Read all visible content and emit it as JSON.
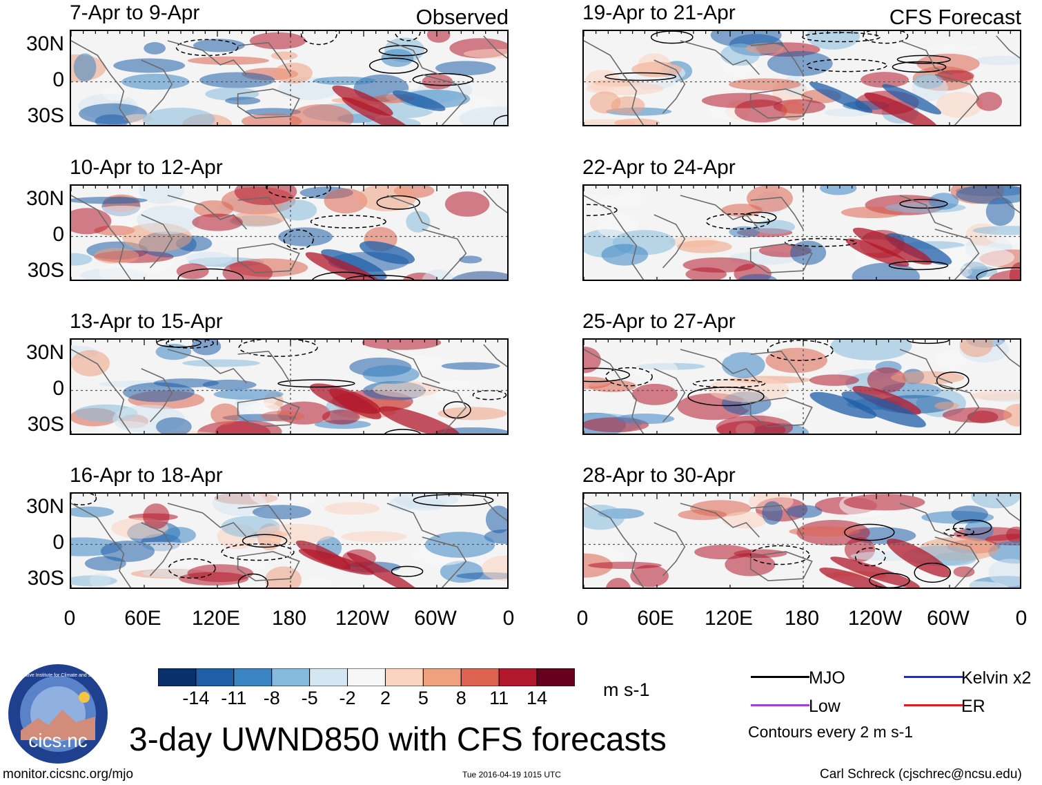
{
  "chart_data": {
    "type": "heatmap",
    "title": "3-day UWND850 with CFS forecasts",
    "variable": "UWND850",
    "units": "m s-1",
    "colorbar": {
      "levels": [
        -14,
        -11,
        -8,
        -5,
        -2,
        2,
        5,
        8,
        11,
        14
      ],
      "tick_labels": [
        "-14",
        "-11",
        "-8",
        "-5",
        "-2",
        "2",
        "5",
        "8",
        "11",
        "14"
      ],
      "colors": [
        "#08306b",
        "#1f5fa8",
        "#3a85c3",
        "#87bbdd",
        "#d4e6f1",
        "#f7f7f7",
        "#fbd4c0",
        "#f0a07f",
        "#dc6450",
        "#b2182b",
        "#67001f"
      ]
    },
    "x_tick_labels": [
      "0",
      "60E",
      "120E",
      "180",
      "120W",
      "60W",
      "0"
    ],
    "y_tick_labels": [
      "30N",
      "0",
      "30S"
    ],
    "contour_note": "Contours every 2 m s-1",
    "legend": [
      {
        "label": "MJO",
        "color": "#000000"
      },
      {
        "label": "Kelvin x2",
        "color": "#1a2fc9"
      },
      {
        "label": "Low",
        "color": "#a03ce0"
      },
      {
        "label": "ER",
        "color": "#e41a1c"
      }
    ],
    "columns": [
      {
        "header": "Observed",
        "panels": [
          {
            "period": "7-Apr to 9-Apr"
          },
          {
            "period": "10-Apr to 12-Apr"
          },
          {
            "period": "13-Apr to 15-Apr"
          },
          {
            "period": "16-Apr to 18-Apr"
          }
        ]
      },
      {
        "header": "CFS Forecast",
        "panels": [
          {
            "period": "19-Apr to 21-Apr"
          },
          {
            "period": "22-Apr to 24-Apr"
          },
          {
            "period": "25-Apr to 27-Apr"
          },
          {
            "period": "28-Apr to 30-Apr"
          }
        ]
      }
    ]
  },
  "footer": {
    "left": "monitor.cicsnc.org/mjo",
    "center": "Tue 2016-04-19 1015 UTC",
    "right": "Carl Schreck (cjschrec@ncsu.edu)"
  },
  "logo": {
    "text": "cics.nc",
    "ring_text": "Cooperative Institute for Climate and Satellites"
  }
}
